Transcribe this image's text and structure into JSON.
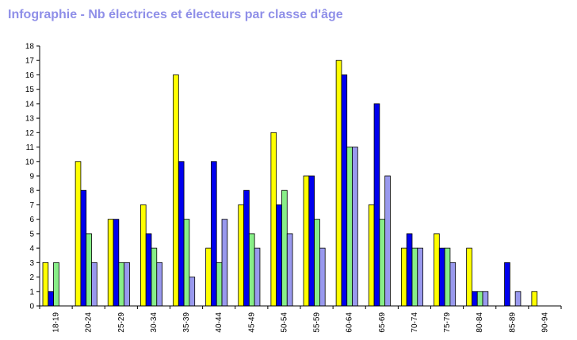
{
  "chart_data": {
    "type": "bar",
    "title": "Infographie - Nb électrices et électeurs par classe d'âge",
    "categories": [
      "18-19",
      "20-24",
      "25-29",
      "30-34",
      "35-39",
      "40-44",
      "45-49",
      "50-54",
      "55-59",
      "60-64",
      "65-69",
      "70-74",
      "75-79",
      "80-84",
      "85-89",
      "90-94"
    ],
    "series": [
      {
        "color": "#ffff00",
        "values": [
          3,
          10,
          6,
          7,
          16,
          4,
          7,
          12,
          9,
          17,
          7,
          4,
          5,
          4,
          0,
          1
        ]
      },
      {
        "color": "#0000ee",
        "values": [
          1,
          8,
          6,
          5,
          10,
          10,
          8,
          7,
          9,
          16,
          14,
          5,
          4,
          1,
          3,
          0
        ]
      },
      {
        "color": "#88ee88",
        "values": [
          3,
          5,
          3,
          4,
          6,
          3,
          5,
          8,
          6,
          11,
          6,
          4,
          4,
          1,
          0,
          0
        ]
      },
      {
        "color": "#9999ee",
        "values": [
          0,
          3,
          3,
          3,
          2,
          6,
          4,
          5,
          4,
          11,
          9,
          4,
          3,
          1,
          1,
          0
        ]
      }
    ],
    "ylim": [
      0,
      18
    ],
    "yticks": [
      0,
      1,
      2,
      3,
      4,
      5,
      6,
      7,
      8,
      9,
      10,
      11,
      12,
      13,
      14,
      15,
      16,
      17,
      18
    ],
    "grid": false,
    "legend": "none"
  }
}
